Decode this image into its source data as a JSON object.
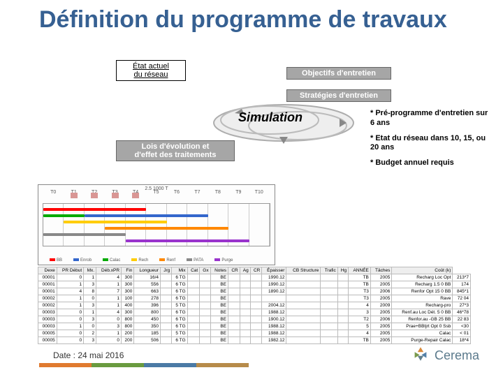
{
  "title": "Définition du programme de travaux",
  "diagram": {
    "etat_actuel": "État actuel\ndu réseau",
    "objectifs": "Objectifs d'entretien",
    "strategies": "Stratégies d'entretien",
    "simulation": "Simulation",
    "lois": "Lois d'évolution et\nd'effet des traitements",
    "ellipse_stroke": "#888888",
    "ellipse_fill": "#eaeaea"
  },
  "notes": [
    "* Pré-programme d'entretien sur 6 ans",
    "* Etat du réseau dans 10, 15, ou 20 ans",
    "* Budget annuel requis"
  ],
  "chart": {
    "title": "2.5 1000 T",
    "columns": [
      "T0",
      "T1",
      "T2",
      "T3",
      "T4",
      "T5",
      "T6",
      "T7",
      "T8",
      "T9",
      "T10"
    ],
    "bars": [
      {
        "row": 0,
        "from": 0,
        "to": 5,
        "color": "#ff0000"
      },
      {
        "row": 1,
        "from": 2,
        "to": 8,
        "color": "#3366cc"
      },
      {
        "row": 1,
        "from": 0,
        "to": 2,
        "color": "#00aa00"
      },
      {
        "row": 2,
        "from": 1,
        "to": 6,
        "color": "#ffcc00"
      },
      {
        "row": 3,
        "from": 3,
        "to": 9,
        "color": "#ff8800"
      },
      {
        "row": 4,
        "from": 0,
        "to": 4,
        "color": "#888888"
      },
      {
        "row": 5,
        "from": 4,
        "to": 10,
        "color": "#9933cc"
      }
    ],
    "legend": [
      {
        "label": "BB",
        "color": "#ff0000"
      },
      {
        "label": "Enrob",
        "color": "#3366cc"
      },
      {
        "label": "Calac",
        "color": "#00aa00"
      },
      {
        "label": "Rech",
        "color": "#ffcc00"
      },
      {
        "label": "Renf",
        "color": "#ff8800"
      },
      {
        "label": "PATA",
        "color": "#888888"
      },
      {
        "label": "Purge",
        "color": "#9933cc"
      }
    ]
  },
  "table": {
    "columns": [
      "Dexe",
      "PR Début",
      "Mx.",
      "Déb.xPR",
      "Fin",
      "Longueur",
      "Jrg",
      "Mix",
      "Cat",
      "Gx",
      "Notes",
      "CR",
      "Ag",
      "CR",
      "Épaisser",
      "CB Structure",
      "Trafic",
      "Hg",
      "ANNÉE",
      "Tâches",
      "Coût (k)"
    ],
    "rows": [
      [
        "00001",
        "0",
        "1",
        "4",
        "300",
        "16/4",
        "",
        "6 TG",
        "",
        "",
        "BE",
        "",
        "",
        "",
        "1990.12",
        "",
        "",
        "",
        "TB",
        "2005",
        "Recharg Loc Opt",
        "213*7"
      ],
      [
        "00001",
        "1",
        "3",
        "1",
        "300",
        "556",
        "",
        "6 TG",
        "",
        "",
        "BE",
        "",
        "",
        "",
        "1990.12",
        "",
        "",
        "",
        "TB",
        "2005",
        "Recharg 1.5 0 BB",
        "174"
      ],
      [
        "00001",
        "4",
        "8",
        "7",
        "300",
        "663",
        "",
        "6 TG",
        "",
        "",
        "BE",
        "",
        "",
        "",
        "1890.12",
        "",
        "",
        "",
        "T3",
        "2006",
        "Renfor Opt 15 0 BB",
        "845*1"
      ],
      [
        "00002",
        "1",
        "0",
        "1",
        "100",
        "278",
        "",
        "6 TG",
        "",
        "",
        "BE",
        "",
        "",
        "",
        "",
        "",
        "",
        "",
        "T3",
        "2005",
        "Rave",
        "72 04"
      ],
      [
        "00002",
        "1",
        "3",
        "1",
        "400",
        "396",
        "",
        "5 TG",
        "",
        "",
        "BE",
        "",
        "",
        "",
        "2004.12",
        "",
        "",
        "",
        "4",
        "2009",
        "Recharg-pro",
        "27*3"
      ],
      [
        "00003",
        "0",
        "1",
        "4",
        "300",
        "800",
        "",
        "6 TG",
        "",
        "",
        "BE",
        "",
        "",
        "",
        "1988.12",
        "",
        "",
        "",
        "3",
        "2005",
        "Renf.au Loc Dét. 5 0 BB",
        "46*78"
      ],
      [
        "00003",
        "0",
        "3",
        "0",
        "800",
        "450",
        "",
        "6 TG",
        "",
        "",
        "BE",
        "",
        "",
        "",
        "1900.12",
        "",
        "",
        "",
        "T2",
        "2006",
        "Renfor.au -GB 25 BB",
        "22 83"
      ],
      [
        "00003",
        "1",
        "0",
        "3",
        "800",
        "350",
        "",
        "6 TG",
        "",
        "",
        "BE",
        "",
        "",
        "",
        "1988.12",
        "",
        "",
        "",
        "5",
        "2005",
        "Prae+BBtjrt Opt 0 Ssb",
        "<30"
      ],
      [
        "00005",
        "0",
        "2",
        "1",
        "200",
        "185",
        "",
        "5 TG",
        "",
        "",
        "BE",
        "",
        "",
        "",
        "1988.12",
        "",
        "",
        "",
        "4",
        "2005",
        "Calac",
        "< 01"
      ],
      [
        "00005",
        "0",
        "3",
        "0",
        "200",
        "506",
        "",
        "6 TG",
        "",
        "",
        "BE",
        "",
        "",
        "",
        "1982.12",
        "",
        "",
        "",
        "TB",
        "2005",
        "Purge-Repair Calac",
        "18*4"
      ]
    ]
  },
  "footer": {
    "date": "Date : 24 mai 2016",
    "brand": "Cerema",
    "bar_colors": [
      "#e07a2f",
      "#6a9b3f",
      "#4b7aa5",
      "#b78b4a"
    ],
    "logo_colors": {
      "pri": "#627f8c",
      "orange": "#d98a3a",
      "green": "#7a9a4c",
      "blue": "#5481a8"
    }
  }
}
